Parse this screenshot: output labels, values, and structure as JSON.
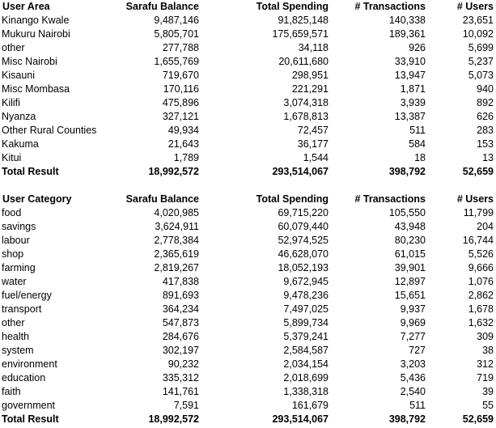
{
  "area_table": {
    "headers": [
      "User Area",
      "Sarafu Balance",
      "Total Spending",
      "# Transactions",
      "# Users"
    ],
    "rows": [
      [
        "Kinango Kwale",
        "9,487,146",
        "91,825,148",
        "140,338",
        "23,651"
      ],
      [
        "Mukuru Nairobi",
        "5,805,701",
        "175,659,571",
        "189,361",
        "10,092"
      ],
      [
        "other",
        "277,788",
        "34,118",
        "926",
        "5,699"
      ],
      [
        "Misc Nairobi",
        "1,655,769",
        "20,611,680",
        "33,910",
        "5,237"
      ],
      [
        "Kisauni",
        "719,670",
        "298,951",
        "13,947",
        "5,073"
      ],
      [
        "Misc Mombasa",
        "170,116",
        "221,291",
        "1,871",
        "940"
      ],
      [
        "Kilifi",
        "475,896",
        "3,074,318",
        "3,939",
        "892"
      ],
      [
        "Nyanza",
        "327,121",
        "1,678,813",
        "13,387",
        "626"
      ],
      [
        "Other Rural Counties",
        "49,934",
        "72,457",
        "511",
        "283"
      ],
      [
        "Kakuma",
        "21,643",
        "36,177",
        "584",
        "153"
      ],
      [
        "Kitui",
        "1,789",
        "1,544",
        "18",
        "13"
      ]
    ],
    "total": [
      "Total Result",
      "18,992,572",
      "293,514,067",
      "398,792",
      "52,659"
    ]
  },
  "category_table": {
    "headers": [
      "User Category",
      "Sarafu Balance",
      "Total Spending",
      "# Transactions",
      "# Users"
    ],
    "rows": [
      [
        "food",
        "4,020,985",
        "69,715,220",
        "105,550",
        "11,799"
      ],
      [
        "savings",
        "3,624,911",
        "60,079,440",
        "43,948",
        "204"
      ],
      [
        "labour",
        "2,778,384",
        "52,974,525",
        "80,230",
        "16,744"
      ],
      [
        "shop",
        "2,365,619",
        "46,628,070",
        "61,015",
        "5,526"
      ],
      [
        "farming",
        "2,819,267",
        "18,052,193",
        "39,901",
        "9,666"
      ],
      [
        "water",
        "417,838",
        "9,672,945",
        "12,897",
        "1,076"
      ],
      [
        "fuel/energy",
        "891,693",
        "9,478,236",
        "15,651",
        "2,862"
      ],
      [
        "transport",
        "364,234",
        "7,497,025",
        "9,937",
        "1,678"
      ],
      [
        "other",
        "547,873",
        "5,899,734",
        "9,969",
        "1,632"
      ],
      [
        "health",
        "284,676",
        "5,379,241",
        "7,277",
        "309"
      ],
      [
        "system",
        "302,197",
        "2,584,587",
        "727",
        "38"
      ],
      [
        "environment",
        "90,232",
        "2,034,154",
        "3,203",
        "312"
      ],
      [
        "education",
        "335,312",
        "2,018,699",
        "5,436",
        "719"
      ],
      [
        "faith",
        "141,761",
        "1,338,318",
        "2,540",
        "39"
      ],
      [
        "government",
        "7,591",
        "161,679",
        "511",
        "55"
      ]
    ],
    "total": [
      "Total Result",
      "18,992,572",
      "293,514,067",
      "398,792",
      "52,659"
    ]
  }
}
